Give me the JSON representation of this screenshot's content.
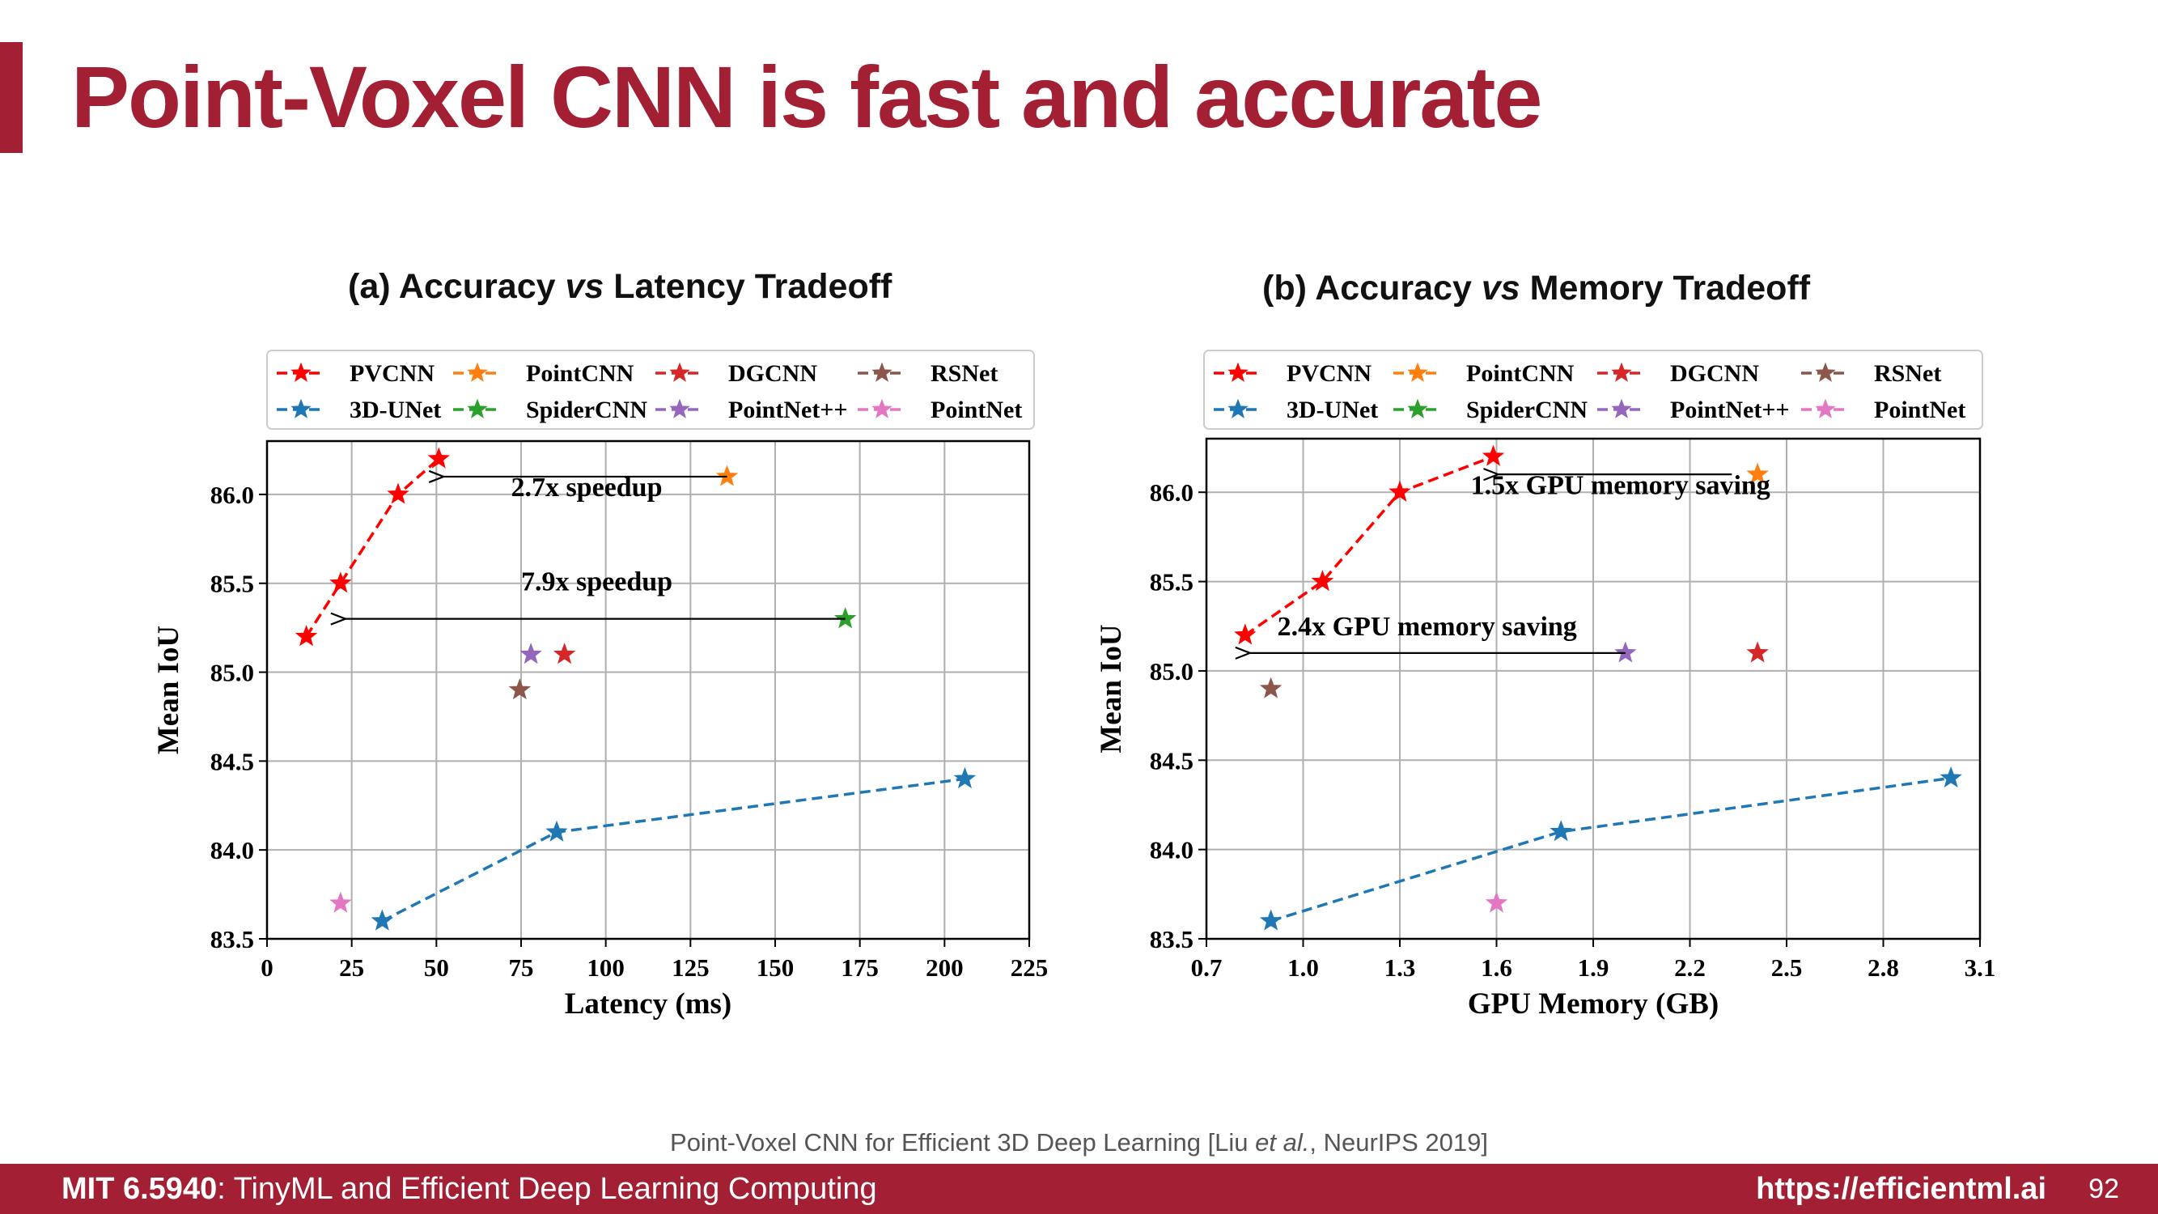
{
  "slide": {
    "title": "Point-Voxel CNN is fast and accurate",
    "citation": "Point-Voxel CNN for Efficient 3D Deep Learning [Liu et al., NeurIPS 2019]",
    "citation_parts": {
      "before": "Point-Voxel CNN for Efficient 3D Deep Learning [Liu ",
      "italic": "et al.",
      "after": ", NeurIPS 2019]"
    },
    "footer": {
      "course_code": "MIT 6.5940",
      "course_name": ": TinyML and Efficient Deep Learning Computing",
      "url": "https://efficientml.ai",
      "page_number": "92"
    },
    "colors": {
      "brand": "#a31f34"
    }
  },
  "chart_data": [
    {
      "type": "scatter",
      "title_parts": {
        "before": "(a) Accuracy ",
        "italic": "vs",
        "after": " Latency Tradeoff"
      },
      "title": "(a) Accuracy vs Latency Tradeoff",
      "xlabel": "Latency (ms)",
      "ylabel": "Mean IoU",
      "xlim": [
        0,
        225
      ],
      "ylim": [
        83.5,
        86.3
      ],
      "xticks": [
        0,
        25,
        50,
        75,
        100,
        125,
        150,
        175,
        200,
        225
      ],
      "xtick_labels": [
        "0",
        "25",
        "50",
        "75",
        "100",
        "125",
        "150",
        "175",
        "200",
        "225"
      ],
      "yticks": [
        83.5,
        84.0,
        84.5,
        85.0,
        85.5,
        86.0
      ],
      "ytick_labels": [
        "83.5",
        "84.0",
        "84.5",
        "85.0",
        "85.5",
        "86.0"
      ],
      "grid": true,
      "legend_position": "top",
      "series": [
        {
          "name": "PVCNN",
          "color": "#ff0000",
          "line": true,
          "points": [
            [
              11.6,
              85.2
            ],
            [
              21.7,
              85.5
            ],
            [
              38.7,
              86.0
            ],
            [
              50.7,
              86.2
            ]
          ]
        },
        {
          "name": "PointCNN",
          "color": "#ff7f0e",
          "line": false,
          "points": [
            [
              135.8,
              86.1
            ]
          ]
        },
        {
          "name": "DGCNN",
          "color": "#d62728",
          "line": false,
          "points": [
            [
              87.8,
              85.1
            ]
          ]
        },
        {
          "name": "RSNet",
          "color": "#8c564b",
          "line": false,
          "points": [
            [
              74.6,
              84.9
            ]
          ]
        },
        {
          "name": "3D-UNet",
          "color": "#1f77b4",
          "line": true,
          "points": [
            [
              34.0,
              83.6
            ],
            [
              85.5,
              84.1
            ],
            [
              206.0,
              84.4
            ]
          ]
        },
        {
          "name": "SpiderCNN",
          "color": "#2ca02c",
          "line": false,
          "points": [
            [
              170.7,
              85.3
            ]
          ]
        },
        {
          "name": "PointNet++",
          "color": "#9467bd",
          "line": false,
          "points": [
            [
              77.9,
              85.1
            ]
          ]
        },
        {
          "name": "PointNet",
          "color": "#e377c2",
          "line": false,
          "points": [
            [
              21.7,
              83.7
            ]
          ]
        }
      ],
      "annotations": [
        {
          "text": "2.7x speedup",
          "arrow_from": [
            135.8,
            86.1
          ],
          "arrow_to": [
            50.7,
            86.1
          ],
          "text_pos": [
            72,
            85.99
          ]
        },
        {
          "text": "7.9x speedup",
          "arrow_from": [
            170.7,
            85.3
          ],
          "arrow_to": [
            21.7,
            85.3
          ],
          "text_pos": [
            75,
            85.46
          ]
        }
      ]
    },
    {
      "type": "scatter",
      "title_parts": {
        "before": "(b) Accuracy ",
        "italic": "vs",
        "after": " Memory Tradeoff"
      },
      "title": "(b) Accuracy vs Memory Tradeoff",
      "xlabel": "GPU Memory (GB)",
      "ylabel": "Mean IoU",
      "xlim": [
        0.7,
        3.1
      ],
      "ylim": [
        83.5,
        86.3
      ],
      "xticks": [
        0.7,
        1.0,
        1.3,
        1.6,
        1.9,
        2.2,
        2.5,
        2.8,
        3.1
      ],
      "xtick_labels": [
        "0.7",
        "1.0",
        "1.3",
        "1.6",
        "1.9",
        "2.2",
        "2.5",
        "2.8",
        "3.1"
      ],
      "yticks": [
        83.5,
        84.0,
        84.5,
        85.0,
        85.5,
        86.0
      ],
      "ytick_labels": [
        "83.5",
        "84.0",
        "84.5",
        "85.0",
        "85.5",
        "86.0"
      ],
      "grid": true,
      "legend_position": "top",
      "series": [
        {
          "name": "PVCNN",
          "color": "#ff0000",
          "line": true,
          "points": [
            [
              0.82,
              85.2
            ],
            [
              1.06,
              85.5
            ],
            [
              1.3,
              86.0
            ],
            [
              1.59,
              86.2
            ]
          ]
        },
        {
          "name": "PointCNN",
          "color": "#ff7f0e",
          "line": false,
          "points": [
            [
              2.41,
              86.1
            ]
          ]
        },
        {
          "name": "DGCNN",
          "color": "#d62728",
          "line": false,
          "points": [
            [
              2.41,
              85.1
            ]
          ]
        },
        {
          "name": "RSNet",
          "color": "#8c564b",
          "line": false,
          "points": [
            [
              0.9,
              84.9
            ]
          ]
        },
        {
          "name": "3D-UNet",
          "color": "#1f77b4",
          "line": true,
          "points": [
            [
              0.9,
              83.6
            ],
            [
              1.8,
              84.1
            ],
            [
              3.01,
              84.4
            ]
          ]
        },
        {
          "name": "SpiderCNN",
          "color": "#2ca02c",
          "line": false,
          "points": []
        },
        {
          "name": "PointNet++",
          "color": "#9467bd",
          "line": false,
          "points": [
            [
              2.0,
              85.1
            ]
          ]
        },
        {
          "name": "PointNet",
          "color": "#e377c2",
          "line": false,
          "points": [
            [
              1.6,
              83.7
            ]
          ]
        }
      ],
      "annotations": [
        {
          "text": "1.5x GPU memory saving",
          "arrow_from": [
            2.33,
            86.1
          ],
          "arrow_to": [
            1.59,
            86.1
          ],
          "text_pos": [
            1.52,
            85.99
          ]
        },
        {
          "text": "2.4x GPU memory saving",
          "arrow_from": [
            2.0,
            85.1
          ],
          "arrow_to": [
            0.82,
            85.1
          ],
          "text_pos": [
            0.92,
            85.2
          ]
        }
      ]
    }
  ]
}
